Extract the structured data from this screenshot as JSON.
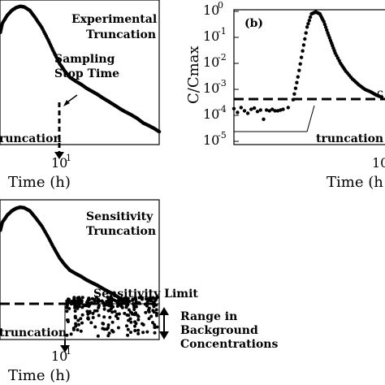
{
  "chart_data": [
    {
      "type": "scatter",
      "panel": "a",
      "title": "",
      "xlabel": "Time (h)",
      "ylabel": "",
      "x_scale": "log",
      "y_scale": "log",
      "tick_labels": {
        "x": "10",
        "x_exp": "1"
      },
      "annotations": {
        "top_right": [
          "Experimental",
          "Truncation"
        ],
        "arrow_label": [
          "Sampling",
          "Stop Time"
        ],
        "bottom_left": "runcation"
      },
      "series": [
        {
          "name": "",
          "x": [
            3.9,
            4.0,
            4.2,
            4.4,
            4.6,
            4.8,
            5.0,
            5.3,
            5.6,
            6.0,
            6.4,
            6.8,
            7.2,
            7.6,
            8.0,
            8.5,
            9.0,
            9.5,
            10,
            10.6,
            11.2,
            11.8,
            12.5,
            13.3,
            14,
            15,
            16,
            17,
            18,
            19,
            20
          ],
          "y": [
            0.3,
            0.45,
            0.6,
            0.72,
            0.8,
            0.84,
            0.82,
            0.72,
            0.55,
            0.38,
            0.24,
            0.15,
            0.1,
            0.075,
            0.06,
            0.052,
            0.046,
            0.04,
            0.036,
            0.032,
            0.028,
            0.025,
            0.022,
            0.019,
            0.017,
            0.015,
            0.013,
            0.011,
            0.01,
            0.009,
            0.008
          ]
        }
      ]
    },
    {
      "type": "scatter",
      "panel": "b",
      "title": "",
      "xlabel": "Time (h",
      "ylabel": "C/Cmax",
      "x_scale": "log",
      "y_scale": "log",
      "ylim": [
        1e-05,
        1
      ],
      "tick_labels": {
        "y": [
          {
            "base": "10",
            "exp": "0"
          },
          {
            "base": "10",
            "exp": "-1"
          },
          {
            "base": "10",
            "exp": "-2"
          },
          {
            "base": "10",
            "exp": "-3"
          },
          {
            "base": "10",
            "exp": "-4"
          },
          {
            "base": "10",
            "exp": "-5"
          }
        ],
        "x": "10"
      },
      "annotations": {
        "panel_label": "(b)",
        "bottom_right": "truncation",
        "right_edge": "c"
      },
      "threshold_y": 0.00025,
      "series": [
        {
          "name": "",
          "x": [
            4.0,
            4.1,
            4.2,
            4.3,
            4.4,
            4.5,
            4.6,
            4.7,
            4.8,
            4.9,
            5.0,
            5.1,
            5.2,
            5.3,
            5.4,
            5.5,
            5.6,
            5.8,
            6.0,
            6.2,
            6.4,
            6.6,
            6.8,
            7.0,
            7.2,
            7.4,
            7.6,
            7.8,
            8.0,
            8.3,
            8.6,
            9.0,
            9.4,
            9.8,
            10.2,
            10.6,
            11.0
          ],
          "y": [
            0.00018,
            0.00013,
            0.0002,
            0.00015,
            0.00012,
            0.00017,
            0.00019,
            0.00014,
            0.00016,
            7.08e-05,
            0.00016,
            0.00015,
            0.00017,
            0.00015,
            0.00015,
            0.00016,
            0.00017,
            0.0002,
            0.0004,
            0.003,
            0.03,
            0.25,
            0.8,
            0.95,
            0.8,
            0.4,
            0.15,
            0.06,
            0.025,
            0.01,
            0.005,
            0.0025,
            0.0015,
            0.001,
            0.0008,
            0.0006,
            0.0005
          ]
        }
      ]
    },
    {
      "type": "scatter",
      "panel": "c",
      "title": "",
      "xlabel": "Time (h)",
      "ylabel": "",
      "x_scale": "log",
      "y_scale": "log",
      "tick_labels": {
        "x": "10",
        "x_exp": "1"
      },
      "annotations": {
        "top_right": [
          "Sensitivity",
          "Truncation"
        ],
        "limit_label": "Sensitivity Limit",
        "bottom_left": "truncation",
        "range_label": [
          "Range in",
          "Background",
          "Concentrations"
        ]
      },
      "series": [
        {
          "name": "",
          "x": [
            3.9,
            4.0,
            4.2,
            4.4,
            4.6,
            4.8,
            5.0,
            5.3,
            5.6,
            6.0,
            6.4,
            6.8,
            7.2,
            7.6,
            8.0,
            8.5,
            9.0,
            9.5,
            10,
            10.6,
            11.2,
            11.8,
            12.5,
            13.3,
            14,
            15,
            16,
            17,
            18,
            19,
            20
          ],
          "y": [
            0.3,
            0.45,
            0.6,
            0.72,
            0.8,
            0.84,
            0.82,
            0.72,
            0.55,
            0.38,
            0.24,
            0.15,
            0.1,
            0.075,
            0.06,
            0.052,
            0.046,
            0.04,
            0.036,
            0.032,
            0.028,
            0.025,
            0.022,
            0.019,
            0.017,
            0.015,
            0.013,
            0.011,
            0.01,
            0.009,
            0.008
          ]
        }
      ]
    }
  ]
}
